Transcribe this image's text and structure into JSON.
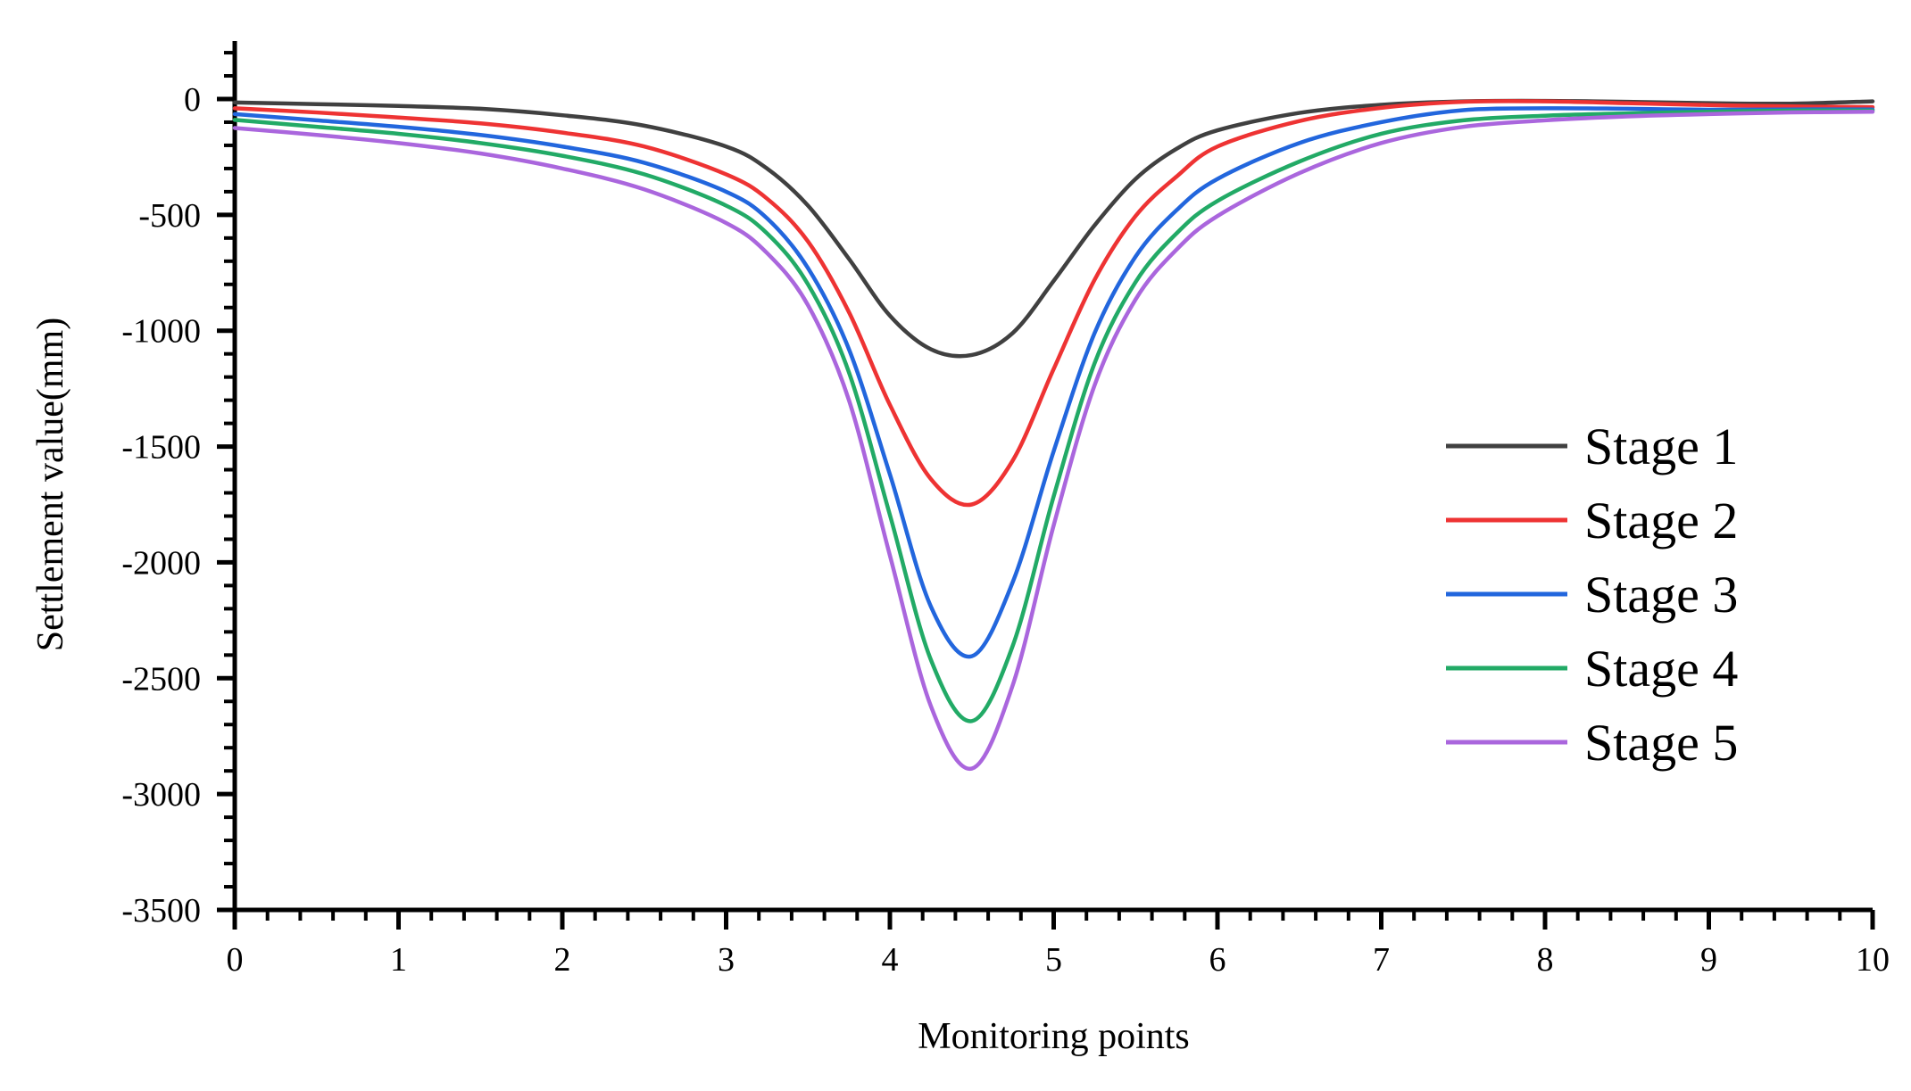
{
  "chart_data": {
    "type": "line",
    "title": "",
    "xlabel": "Monitoring points",
    "ylabel": "Settlement value(mm)",
    "xlim": [
      0,
      10
    ],
    "ylim": [
      -3500,
      250
    ],
    "x_ticks": [
      0,
      1,
      2,
      3,
      4,
      5,
      6,
      7,
      8,
      9,
      10
    ],
    "x_tick_labels": [
      "0",
      "1",
      "2",
      "3",
      "4",
      "5",
      "6",
      "7",
      "8",
      "9",
      "10"
    ],
    "y_ticks": [
      0,
      -500,
      -1000,
      -1500,
      -2000,
      -2500,
      -3000,
      -3500
    ],
    "y_tick_labels": [
      "0",
      "-500",
      "-1000",
      "-1500",
      "-2000",
      "-2500",
      "-3000",
      "-3500"
    ],
    "grid": false,
    "legend_position": "right",
    "x": [
      0,
      0.5,
      1,
      1.5,
      2,
      2.5,
      3,
      3.25,
      3.5,
      3.75,
      4,
      4.25,
      4.5,
      4.75,
      5,
      5.25,
      5.5,
      5.75,
      6,
      6.5,
      7,
      7.5,
      8,
      8.5,
      9,
      9.5,
      10
    ],
    "series": [
      {
        "name": "Stage 1",
        "color": "#404040",
        "values": [
          -15,
          -22,
          -30,
          -42,
          -70,
          -115,
          -205,
          -300,
          -460,
          -690,
          -935,
          -1080,
          -1105,
          -1010,
          -785,
          -545,
          -345,
          -215,
          -135,
          -60,
          -25,
          -10,
          -8,
          -12,
          -18,
          -20,
          -10
        ]
      },
      {
        "name": "Stage 2",
        "color": "#ee3333",
        "values": [
          -40,
          -58,
          -80,
          -105,
          -145,
          -205,
          -325,
          -430,
          -615,
          -920,
          -1320,
          -1640,
          -1750,
          -1560,
          -1165,
          -780,
          -505,
          -335,
          -205,
          -95,
          -38,
          -12,
          -10,
          -18,
          -26,
          -32,
          -35
        ]
      },
      {
        "name": "Stage 3",
        "color": "#2266dd",
        "values": [
          -65,
          -92,
          -120,
          -155,
          -205,
          -275,
          -400,
          -515,
          -730,
          -1080,
          -1620,
          -2190,
          -2405,
          -2085,
          -1520,
          -1010,
          -680,
          -480,
          -345,
          -190,
          -100,
          -48,
          -40,
          -42,
          -46,
          -45,
          -45
        ]
      },
      {
        "name": "Stage 4",
        "color": "#22aa66",
        "values": [
          -90,
          -120,
          -150,
          -190,
          -245,
          -325,
          -460,
          -580,
          -800,
          -1180,
          -1795,
          -2420,
          -2685,
          -2360,
          -1715,
          -1140,
          -790,
          -580,
          -440,
          -270,
          -150,
          -92,
          -72,
          -62,
          -55,
          -50,
          -50
        ]
      },
      {
        "name": "Stage 5",
        "color": "#aa66dd",
        "values": [
          -125,
          -155,
          -190,
          -235,
          -300,
          -390,
          -535,
          -665,
          -890,
          -1300,
          -1970,
          -2620,
          -2890,
          -2530,
          -1840,
          -1235,
          -865,
          -650,
          -505,
          -320,
          -190,
          -120,
          -92,
          -75,
          -65,
          -58,
          -55
        ]
      }
    ]
  }
}
